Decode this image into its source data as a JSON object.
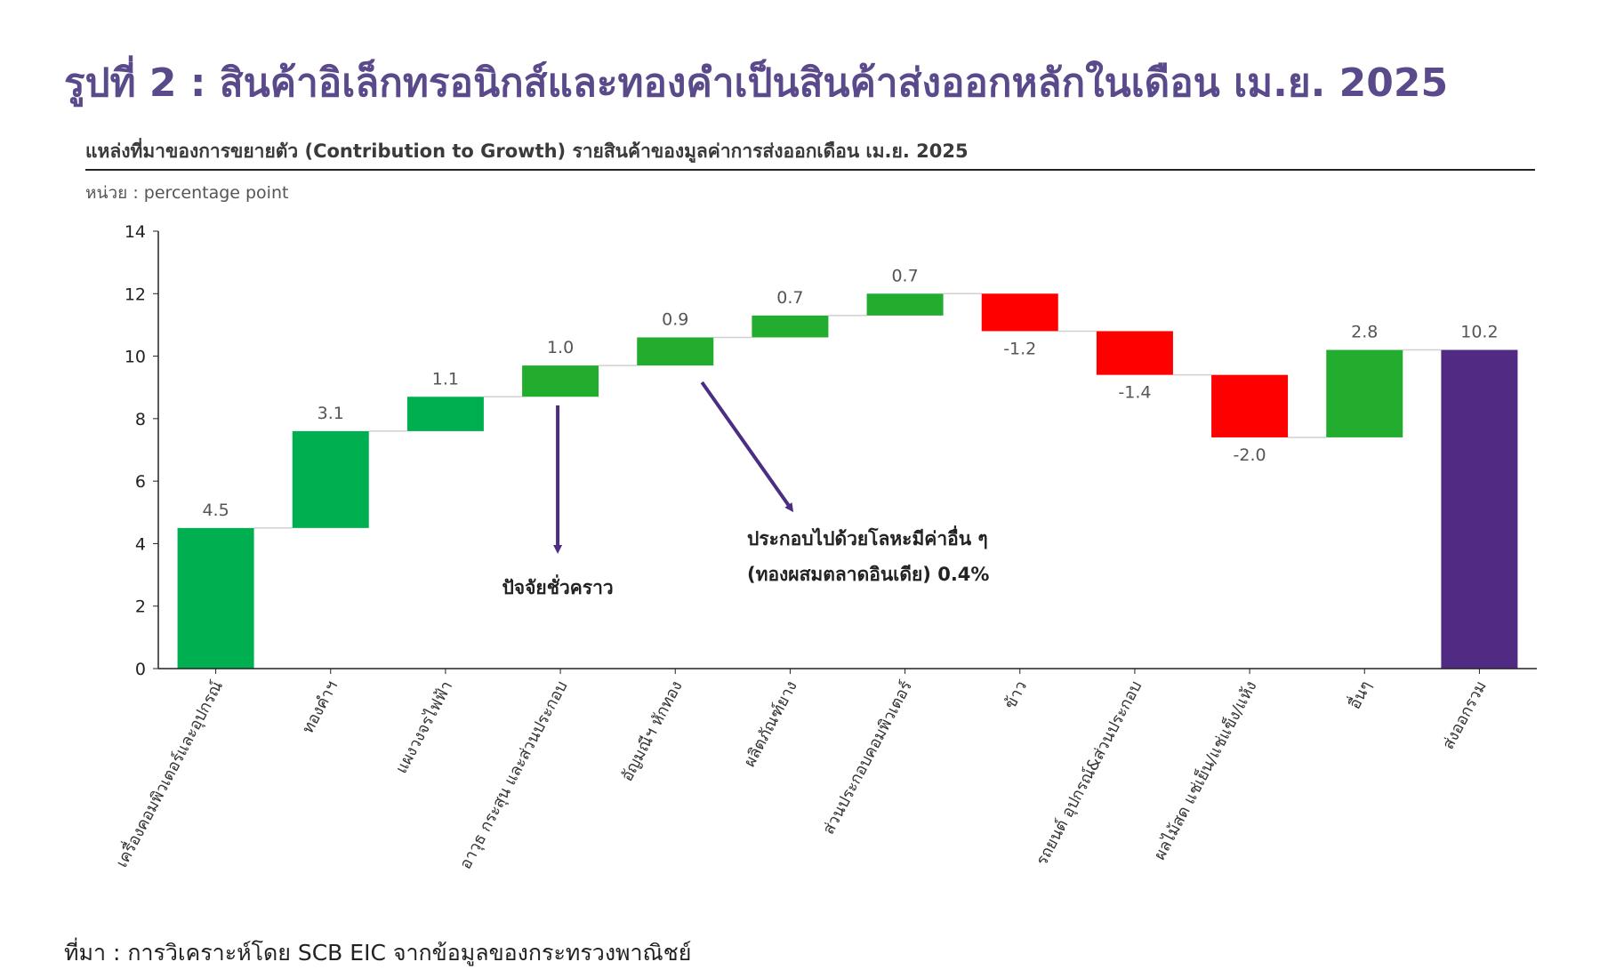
{
  "header": {
    "title": "รูปที่ 2 : สินค้าอิเล็กทรอนิกส์และทองคำเป็นสินค้าส่งออกหลักในเดือน เม.ย. 2025",
    "subtitle": "แหล่งที่มาของการขยายตัว (Contribution to Growth) รายสินค้าของมูลค่าการส่งออกเดือน เม.ย. 2025",
    "unit": "หน่วย : percentage point"
  },
  "footer": {
    "source": "ที่มา : การวิเคราะห์โดย SCB EIC จากข้อมูลของกระทรวงพาณิชย์"
  },
  "chart_data": {
    "type": "bar",
    "subtype": "waterfall",
    "categories": [
      "เครื่องคอมพิวเตอร์และอุปกรณ์",
      "ทองคำฯ",
      "แผงวงจรไฟฟ้า",
      "อาวุธ กระสุน และส่วนประกอบ",
      "อัญมณีฯ หักทอง",
      "ผลิตภัณฑ์ยาง",
      "ส่วนประกอบคอมพิวเตอร์",
      "ข้าว",
      "รถยนต์ อุปกรณ์&ส่วนประกอบ",
      "ผลไม้สด แช่เย็น/แช่แข็ง/แห้ง",
      "อื่นๆ",
      "ส่งออกรวม"
    ],
    "values": [
      4.5,
      3.1,
      1.1,
      1.0,
      0.9,
      0.7,
      0.7,
      -1.2,
      -1.4,
      -2.0,
      2.8,
      10.2
    ],
    "value_labels": [
      "4.5",
      "3.1",
      "1.1",
      "1.0",
      "0.9",
      "0.7",
      "0.7",
      "-1.2",
      "-1.4",
      "-2.0",
      "2.8",
      "10.2"
    ],
    "total_index": 11,
    "yticks": [
      0,
      2,
      4,
      6,
      8,
      10,
      12,
      14
    ],
    "ylim": [
      0,
      14
    ],
    "grid": false,
    "legend": "none",
    "colors": {
      "positive": "#00b050",
      "positive_alt": "#22ad2e",
      "negative": "#ff0000",
      "total": "#512a84",
      "arrow": "#4b2d83",
      "connector": "#d0d0d0",
      "label": "#555555"
    },
    "annotations": [
      {
        "text": "ปัจจัยชั่วคราว",
        "target_index": 3
      },
      {
        "line1": "ประกอบไปด้วยโลหะมีค่าอื่น ๆ",
        "line2": "(ทองผสมตลาดอินเดีย) 0.4%",
        "target_index": 4
      }
    ]
  }
}
